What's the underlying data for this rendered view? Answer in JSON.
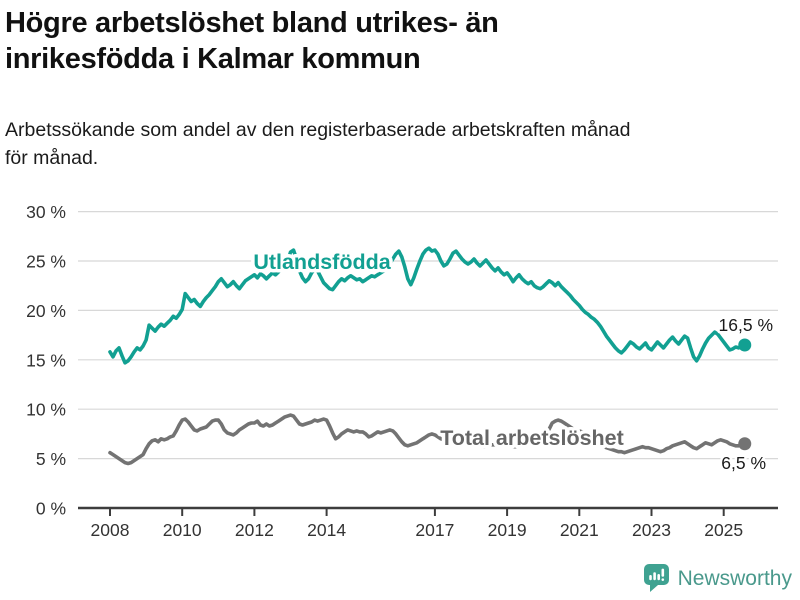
{
  "header": {
    "title_lines": [
      "Högre arbetslöshet bland utrikes- än",
      "inrikesfödda i Kalmar kommun"
    ],
    "subtitle_lines": [
      "Arbetssökande som andel av den registerbaserade arbetskraften månad",
      "för månad."
    ]
  },
  "chart_data": {
    "type": "line",
    "unit": "%",
    "x_start": "2008-01",
    "x_end": "2025-08",
    "ylim": [
      0,
      30
    ],
    "grid": "horizontal",
    "y_ticks": [
      {
        "label": "0 %",
        "value": 0
      },
      {
        "label": "5 %",
        "value": 5
      },
      {
        "label": "10 %",
        "value": 10
      },
      {
        "label": "15 %",
        "value": 15
      },
      {
        "label": "20 %",
        "value": 20
      },
      {
        "label": "25 %",
        "value": 25
      },
      {
        "label": "30 %",
        "value": 30
      }
    ],
    "x_ticks": [
      {
        "label": "2008",
        "year": 2008
      },
      {
        "label": "2010",
        "year": 2010
      },
      {
        "label": "2012",
        "year": 2012
      },
      {
        "label": "2014",
        "year": 2014
      },
      {
        "label": "2017",
        "year": 2017
      },
      {
        "label": "2019",
        "year": 2019
      },
      {
        "label": "2021",
        "year": 2021
      },
      {
        "label": "2023",
        "year": 2023
      },
      {
        "label": "2025",
        "year": 2025
      }
    ],
    "series": [
      {
        "name": "Utlandsfödda",
        "color": "#12a092",
        "end_label": "16,5 %",
        "end_value": 16.5,
        "values": [
          15.8,
          15.3,
          15.9,
          16.2,
          15.4,
          14.7,
          14.9,
          15.3,
          15.8,
          16.2,
          16.0,
          16.4,
          17.0,
          18.5,
          18.2,
          17.9,
          18.3,
          18.6,
          18.4,
          18.7,
          19.0,
          19.4,
          19.2,
          19.6,
          20.1,
          21.7,
          21.3,
          20.9,
          21.1,
          20.7,
          20.4,
          20.9,
          21.3,
          21.6,
          22.0,
          22.4,
          22.9,
          23.2,
          22.8,
          22.4,
          22.6,
          22.9,
          22.5,
          22.2,
          22.6,
          23.0,
          23.2,
          23.4,
          23.6,
          23.3,
          23.7,
          23.5,
          23.2,
          23.5,
          23.8,
          23.6,
          23.9,
          24.2,
          24.5,
          24.9,
          25.9,
          26.1,
          25.2,
          24.0,
          23.3,
          22.9,
          23.2,
          23.8,
          24.2,
          24.0,
          23.4,
          22.8,
          22.5,
          22.2,
          22.1,
          22.5,
          22.9,
          23.2,
          23.0,
          23.3,
          23.5,
          23.3,
          23.1,
          23.2,
          22.9,
          23.1,
          23.3,
          23.5,
          23.4,
          23.6,
          23.8,
          24.0,
          24.3,
          24.7,
          25.2,
          25.7,
          26.0,
          25.4,
          24.4,
          23.2,
          22.6,
          23.3,
          24.2,
          25.0,
          25.7,
          26.1,
          26.3,
          26.0,
          26.1,
          25.7,
          25.0,
          24.5,
          24.7,
          25.2,
          25.8,
          26.0,
          25.6,
          25.2,
          24.9,
          24.7,
          24.9,
          25.2,
          24.8,
          24.5,
          24.8,
          25.1,
          24.7,
          24.3,
          24.0,
          24.3,
          23.9,
          23.6,
          23.8,
          23.4,
          22.9,
          23.3,
          23.6,
          23.2,
          22.9,
          22.7,
          22.9,
          22.5,
          22.3,
          22.2,
          22.4,
          22.7,
          23.0,
          22.8,
          22.5,
          22.8,
          22.4,
          22.1,
          21.8,
          21.5,
          21.1,
          20.8,
          20.5,
          20.1,
          19.8,
          19.6,
          19.3,
          19.1,
          18.8,
          18.4,
          17.9,
          17.4,
          17.0,
          16.6,
          16.2,
          15.9,
          15.7,
          16.0,
          16.4,
          16.8,
          16.6,
          16.3,
          16.1,
          16.4,
          16.7,
          16.2,
          16.0,
          16.4,
          16.8,
          16.5,
          16.2,
          16.6,
          17.0,
          17.3,
          16.9,
          16.6,
          17.0,
          17.4,
          17.2,
          16.2,
          15.3,
          14.9,
          15.4,
          16.1,
          16.7,
          17.2,
          17.5,
          17.8,
          17.6,
          17.2,
          16.8,
          16.4,
          16.0,
          16.1,
          16.3,
          16.2,
          16.4,
          16.5
        ]
      },
      {
        "name": "Total arbetslöshet",
        "color": "#737373",
        "end_label": "6,5 %",
        "end_value": 6.5,
        "values": [
          5.6,
          5.4,
          5.2,
          5.0,
          4.8,
          4.6,
          4.5,
          4.6,
          4.8,
          5.0,
          5.2,
          5.4,
          6.0,
          6.5,
          6.8,
          6.9,
          6.7,
          7.0,
          6.9,
          7.0,
          7.2,
          7.3,
          7.8,
          8.4,
          8.9,
          9.0,
          8.7,
          8.3,
          7.9,
          7.8,
          8.0,
          8.1,
          8.2,
          8.5,
          8.8,
          8.9,
          8.9,
          8.5,
          7.9,
          7.6,
          7.5,
          7.4,
          7.6,
          7.9,
          8.1,
          8.3,
          8.5,
          8.6,
          8.6,
          8.8,
          8.4,
          8.3,
          8.5,
          8.3,
          8.4,
          8.6,
          8.8,
          9.0,
          9.2,
          9.3,
          9.4,
          9.3,
          8.9,
          8.5,
          8.4,
          8.5,
          8.6,
          8.7,
          8.9,
          8.8,
          8.9,
          9.0,
          8.9,
          8.3,
          7.6,
          7.0,
          7.2,
          7.5,
          7.7,
          7.9,
          7.8,
          7.7,
          7.8,
          7.7,
          7.7,
          7.5,
          7.2,
          7.3,
          7.5,
          7.7,
          7.6,
          7.7,
          7.8,
          7.9,
          7.8,
          7.5,
          7.1,
          6.7,
          6.4,
          6.3,
          6.4,
          6.5,
          6.6,
          6.8,
          7.0,
          7.2,
          7.4,
          7.5,
          7.4,
          7.2,
          7.0,
          6.9,
          6.8,
          6.8,
          6.9,
          7.0,
          7.0,
          6.9,
          6.8,
          6.8,
          6.7,
          6.6,
          6.4,
          6.3,
          6.2,
          6.2,
          6.3,
          6.4,
          6.4,
          6.3,
          6.3,
          6.4,
          6.4,
          6.3,
          6.2,
          6.2,
          6.3,
          6.4,
          6.5,
          6.6,
          6.6,
          6.7,
          6.8,
          7.0,
          7.2,
          7.4,
          8.0,
          8.6,
          8.8,
          8.9,
          8.8,
          8.6,
          8.4,
          8.2,
          8.0,
          7.9,
          7.8,
          7.7,
          7.5,
          7.3,
          7.1,
          6.9,
          6.7,
          6.5,
          6.3,
          6.1,
          6.0,
          5.9,
          5.8,
          5.7,
          5.7,
          5.6,
          5.7,
          5.8,
          5.9,
          6.0,
          6.1,
          6.2,
          6.1,
          6.1,
          6.0,
          5.9,
          5.8,
          5.7,
          5.8,
          6.0,
          6.1,
          6.3,
          6.4,
          6.5,
          6.6,
          6.7,
          6.5,
          6.3,
          6.1,
          6.0,
          6.2,
          6.4,
          6.6,
          6.5,
          6.4,
          6.6,
          6.8,
          6.9,
          6.8,
          6.7,
          6.5,
          6.4,
          6.3,
          6.3,
          6.4,
          6.5
        ]
      }
    ],
    "colors": {
      "axis": "#3d3d3d",
      "gridline": "#d8d8d8",
      "tick_text": "#333333",
      "annotation_text": "#1a1a1a"
    }
  },
  "footer": {
    "brand": "Newsworthy",
    "logo_icon": "bar-chart-speech-bubble-icon",
    "brand_color": "#4a998c",
    "icon_color": "#3fa291"
  }
}
